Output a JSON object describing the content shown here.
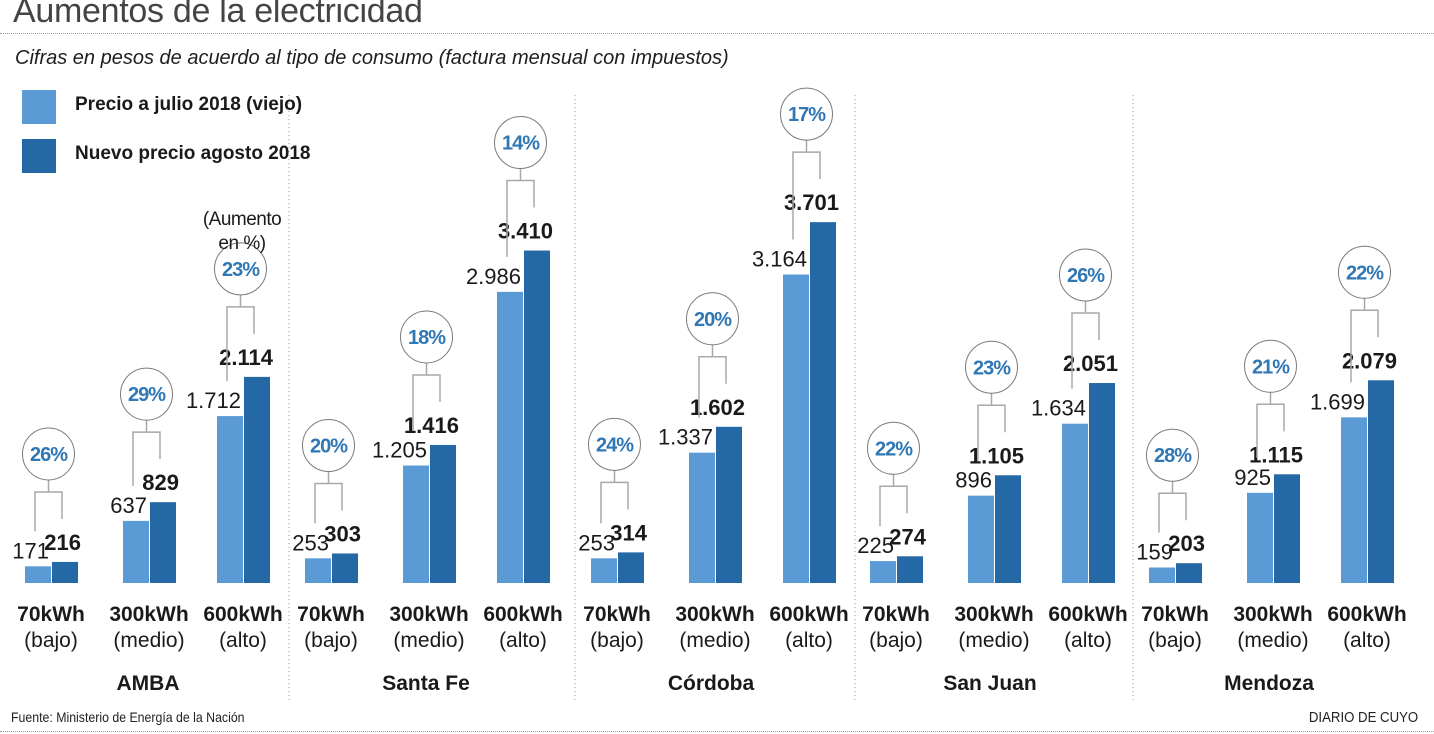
{
  "header": {
    "title": "Aumentos de la electricidad",
    "subtitle": "Cifras en pesos de acuerdo al tipo de consumo (factura mensual con impuestos)"
  },
  "legend": [
    {
      "label": "Precio a julio 2018 (viejo)",
      "color": "#5b9bd5"
    },
    {
      "label": "Nuevo precio agosto 2018",
      "color": "#2568a6"
    }
  ],
  "footer": {
    "source": "Fuente: Ministerio de Energía de la Nación",
    "brand": "DIARIO DE CUYO"
  },
  "colors": {
    "old": "#5b9bd5",
    "new": "#2568a6",
    "percent_text": "#2f77b5",
    "bracket": "#a8a8a8",
    "circle": "#7a7a7a",
    "separator": "#9a9a9a"
  },
  "chart_data": {
    "type": "bar",
    "title": "Aumentos de la electricidad",
    "subtitle": "Cifras en pesos de acuerdo al tipo de consumo (factura mensual con impuestos)",
    "annotation": "(Aumento en %)",
    "legend_position": "top-left",
    "ylim": [
      0,
      3800
    ],
    "grid": false,
    "series": [
      {
        "name": "Precio a julio 2018 (viejo)",
        "key": "old"
      },
      {
        "name": "Nuevo precio agosto 2018",
        "key": "new"
      }
    ],
    "consumption_levels": [
      {
        "kwh": "70kWh",
        "tier": "(bajo)"
      },
      {
        "kwh": "300kWh",
        "tier": "(medio)"
      },
      {
        "kwh": "600kWh",
        "tier": "(alto)"
      }
    ],
    "regions": [
      {
        "name": "AMBA",
        "groups": [
          {
            "old": 171,
            "new": 216,
            "old_label": "171",
            "new_label": "216",
            "increase": "26%"
          },
          {
            "old": 637,
            "new": 829,
            "old_label": "637",
            "new_label": "829",
            "increase": "29%"
          },
          {
            "old": 1712,
            "new": 2114,
            "old_label": "1.712",
            "new_label": "2.114",
            "increase": "23%"
          }
        ]
      },
      {
        "name": "Santa Fe",
        "groups": [
          {
            "old": 253,
            "new": 303,
            "old_label": "253",
            "new_label": "303",
            "increase": "20%"
          },
          {
            "old": 1205,
            "new": 1416,
            "old_label": "1.205",
            "new_label": "1.416",
            "increase": "18%"
          },
          {
            "old": 2986,
            "new": 3410,
            "old_label": "2.986",
            "new_label": "3.410",
            "increase": "14%"
          }
        ]
      },
      {
        "name": "Córdoba",
        "groups": [
          {
            "old": 253,
            "new": 314,
            "old_label": "253",
            "new_label": "314",
            "increase": "24%"
          },
          {
            "old": 1337,
            "new": 1602,
            "old_label": "1.337",
            "new_label": "1.602",
            "increase": "20%"
          },
          {
            "old": 3164,
            "new": 3701,
            "old_label": "3.164",
            "new_label": "3.701",
            "increase": "17%"
          }
        ]
      },
      {
        "name": "San Juan",
        "groups": [
          {
            "old": 225,
            "new": 274,
            "old_label": "225",
            "new_label": "274",
            "increase": "22%"
          },
          {
            "old": 896,
            "new": 1105,
            "old_label": "896",
            "new_label": "1.105",
            "increase": "23%"
          },
          {
            "old": 1634,
            "new": 2051,
            "old_label": "1.634",
            "new_label": "2.051",
            "increase": "26%"
          }
        ]
      },
      {
        "name": "Mendoza",
        "groups": [
          {
            "old": 159,
            "new": 203,
            "old_label": "159",
            "new_label": "203",
            "increase": "28%"
          },
          {
            "old": 925,
            "new": 1115,
            "old_label": "925",
            "new_label": "1.115",
            "increase": "21%"
          },
          {
            "old": 1699,
            "new": 2079,
            "old_label": "1.699",
            "new_label": "2.079",
            "increase": "22%"
          }
        ]
      }
    ]
  }
}
